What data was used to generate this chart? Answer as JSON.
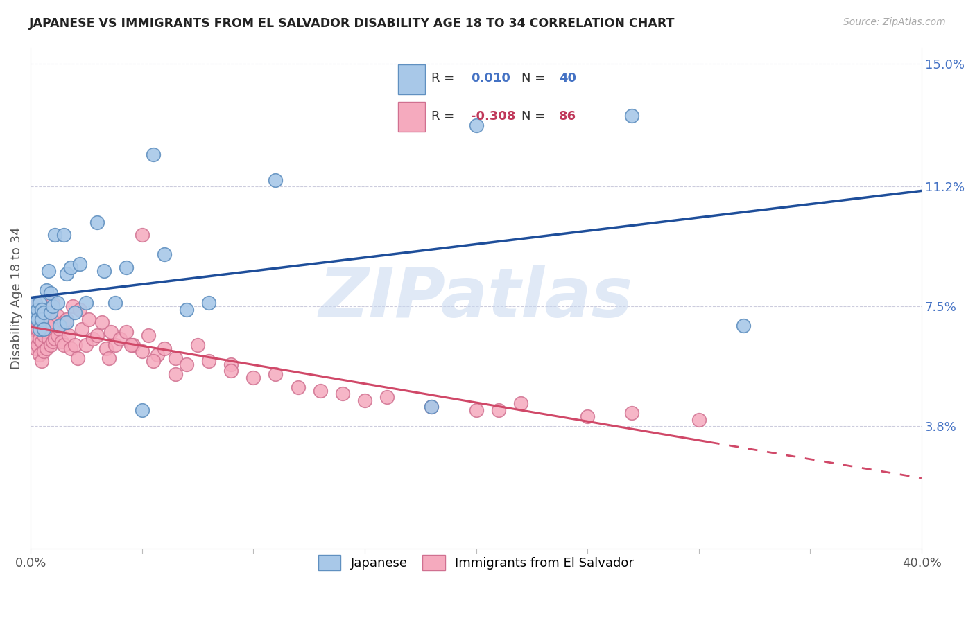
{
  "title": "JAPANESE VS IMMIGRANTS FROM EL SALVADOR DISABILITY AGE 18 TO 34 CORRELATION CHART",
  "source": "Source: ZipAtlas.com",
  "ylabel": "Disability Age 18 to 34",
  "xlim": [
    0.0,
    0.4
  ],
  "ylim": [
    0.0,
    0.155
  ],
  "xtick_positions": [
    0.0,
    0.05,
    0.1,
    0.15,
    0.2,
    0.25,
    0.3,
    0.35,
    0.4
  ],
  "xticklabels": [
    "0.0%",
    "",
    "",
    "",
    "",
    "",
    "",
    "",
    "40.0%"
  ],
  "right_ytick_pos": [
    0.038,
    0.075,
    0.112,
    0.15
  ],
  "right_ytick_labels": [
    "3.8%",
    "7.5%",
    "11.2%",
    "15.0%"
  ],
  "R_jp": "0.010",
  "N_jp": "40",
  "R_sv": "-0.308",
  "N_sv": "86",
  "blue_fill": "#A8C8E8",
  "blue_edge": "#6090C0",
  "pink_fill": "#F5AABE",
  "pink_edge": "#D07090",
  "blue_line": "#1E4E9A",
  "pink_line": "#D04868",
  "r_blue_text": "#4472C4",
  "r_pink_text": "#C0385A",
  "watermark": "ZIPatlas",
  "watermark_color": "#C8D8F0",
  "jp_x": [
    0.001,
    0.002,
    0.002,
    0.003,
    0.003,
    0.004,
    0.004,
    0.005,
    0.005,
    0.006,
    0.006,
    0.007,
    0.008,
    0.009,
    0.009,
    0.01,
    0.011,
    0.012,
    0.013,
    0.015,
    0.016,
    0.016,
    0.018,
    0.02,
    0.022,
    0.025,
    0.03,
    0.033,
    0.038,
    0.043,
    0.05,
    0.055,
    0.06,
    0.07,
    0.08,
    0.11,
    0.18,
    0.2,
    0.27,
    0.32
  ],
  "jp_y": [
    0.073,
    0.072,
    0.076,
    0.074,
    0.071,
    0.076,
    0.068,
    0.074,
    0.071,
    0.073,
    0.068,
    0.08,
    0.086,
    0.079,
    0.073,
    0.075,
    0.097,
    0.076,
    0.069,
    0.097,
    0.085,
    0.07,
    0.087,
    0.073,
    0.088,
    0.076,
    0.101,
    0.086,
    0.076,
    0.087,
    0.043,
    0.122,
    0.091,
    0.074,
    0.076,
    0.114,
    0.044,
    0.131,
    0.134,
    0.069
  ],
  "sv_x": [
    0.001,
    0.001,
    0.002,
    0.002,
    0.002,
    0.003,
    0.003,
    0.003,
    0.003,
    0.004,
    0.004,
    0.004,
    0.005,
    0.005,
    0.005,
    0.005,
    0.006,
    0.006,
    0.006,
    0.007,
    0.007,
    0.007,
    0.008,
    0.008,
    0.009,
    0.009,
    0.009,
    0.01,
    0.01,
    0.01,
    0.011,
    0.011,
    0.012,
    0.012,
    0.013,
    0.014,
    0.015,
    0.015,
    0.016,
    0.017,
    0.018,
    0.019,
    0.02,
    0.021,
    0.022,
    0.023,
    0.025,
    0.026,
    0.028,
    0.03,
    0.032,
    0.034,
    0.036,
    0.038,
    0.04,
    0.043,
    0.046,
    0.05,
    0.053,
    0.057,
    0.06,
    0.065,
    0.07,
    0.075,
    0.08,
    0.09,
    0.1,
    0.11,
    0.12,
    0.13,
    0.14,
    0.15,
    0.16,
    0.18,
    0.2,
    0.21,
    0.22,
    0.25,
    0.27,
    0.3,
    0.05,
    0.035,
    0.045,
    0.055,
    0.065,
    0.09
  ],
  "sv_y": [
    0.072,
    0.068,
    0.075,
    0.065,
    0.062,
    0.074,
    0.068,
    0.063,
    0.07,
    0.071,
    0.065,
    0.06,
    0.074,
    0.069,
    0.064,
    0.058,
    0.072,
    0.066,
    0.061,
    0.073,
    0.067,
    0.062,
    0.071,
    0.065,
    0.073,
    0.068,
    0.063,
    0.076,
    0.069,
    0.064,
    0.07,
    0.065,
    0.072,
    0.066,
    0.068,
    0.064,
    0.07,
    0.063,
    0.071,
    0.066,
    0.062,
    0.075,
    0.063,
    0.059,
    0.074,
    0.068,
    0.063,
    0.071,
    0.065,
    0.066,
    0.07,
    0.062,
    0.067,
    0.063,
    0.065,
    0.067,
    0.063,
    0.061,
    0.066,
    0.06,
    0.062,
    0.059,
    0.057,
    0.063,
    0.058,
    0.057,
    0.053,
    0.054,
    0.05,
    0.049,
    0.048,
    0.046,
    0.047,
    0.044,
    0.043,
    0.043,
    0.045,
    0.041,
    0.042,
    0.04,
    0.097,
    0.059,
    0.063,
    0.058,
    0.054,
    0.055
  ]
}
